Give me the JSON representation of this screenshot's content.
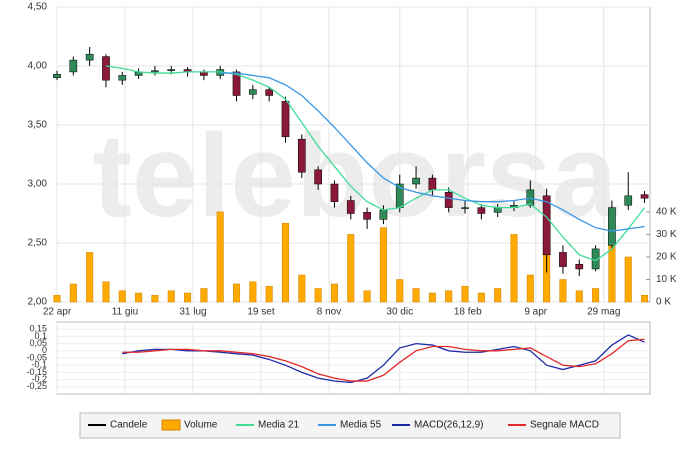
{
  "chart_data": {
    "type": "candlestick",
    "watermark": "teleborsa",
    "grid": true,
    "x": [
      0,
      12,
      24,
      36,
      48,
      60,
      72,
      84,
      96,
      108,
      120,
      132,
      144,
      156,
      168,
      180,
      192,
      204,
      216,
      228,
      240,
      252,
      264,
      276,
      288,
      300,
      312,
      324,
      336,
      348,
      360,
      372,
      384,
      396,
      408,
      420,
      432
    ],
    "xlim": [
      0,
      436
    ],
    "xticks": [
      {
        "value": 0,
        "label": "22 apr"
      },
      {
        "value": 50,
        "label": "11 giu"
      },
      {
        "value": 100,
        "label": "31 lug"
      },
      {
        "value": 150,
        "label": "19 set"
      },
      {
        "value": 200,
        "label": "8 nov"
      },
      {
        "value": 252,
        "label": "30 dic"
      },
      {
        "value": 302,
        "label": "18 feb"
      },
      {
        "value": 352,
        "label": "9 apr"
      },
      {
        "value": 402,
        "label": "29 mag"
      }
    ],
    "ylim": [
      2,
      4.5
    ],
    "yticks": [
      {
        "value": 2,
        "label": "2,00"
      },
      {
        "value": 2.5,
        "label": "2,50"
      },
      {
        "value": 3,
        "label": "3,00"
      },
      {
        "value": 3.5,
        "label": "3,50"
      },
      {
        "value": 4,
        "label": "4,00"
      },
      {
        "value": 4.5,
        "label": "4,50"
      }
    ],
    "y2lim": [
      0,
      131000
    ],
    "y2ticks": [
      {
        "value": 0,
        "label": "0 K"
      },
      {
        "value": 10000,
        "label": "10 K"
      },
      {
        "value": 20000,
        "label": "20 K"
      },
      {
        "value": 30000,
        "label": "30 K"
      },
      {
        "value": 40000,
        "label": "40 K"
      }
    ],
    "candles": {
      "name": "Candele",
      "color": "#000000",
      "up_color": "#2e8b57",
      "down_color": "#8b1a3a",
      "open": [
        3.9,
        3.95,
        4.05,
        4.08,
        3.88,
        3.92,
        3.95,
        3.96,
        3.97,
        3.95,
        3.92,
        3.95,
        3.76,
        3.8,
        3.7,
        3.38,
        3.12,
        3.0,
        2.86,
        2.76,
        2.7,
        2.8,
        3.0,
        3.05,
        2.93,
        2.8,
        2.8,
        2.76,
        2.8,
        2.82,
        2.9,
        2.42,
        2.32,
        2.28,
        2.48,
        2.82,
        2.91
      ],
      "high": [
        3.96,
        4.08,
        4.16,
        4.1,
        3.95,
        3.98,
        4.0,
        4.0,
        3.99,
        3.97,
        4.0,
        3.97,
        3.84,
        3.82,
        3.74,
        3.42,
        3.15,
        3.03,
        2.9,
        2.8,
        2.82,
        3.08,
        3.15,
        3.08,
        2.97,
        2.86,
        2.83,
        2.83,
        2.86,
        3.03,
        2.96,
        2.48,
        2.36,
        2.48,
        2.86,
        3.1,
        2.94
      ],
      "low": [
        3.88,
        3.92,
        4.0,
        3.82,
        3.84,
        3.89,
        3.92,
        3.93,
        3.91,
        3.88,
        3.89,
        3.7,
        3.72,
        3.7,
        3.35,
        3.05,
        2.95,
        2.8,
        2.7,
        2.62,
        2.66,
        2.76,
        2.96,
        2.9,
        2.76,
        2.75,
        2.7,
        2.72,
        2.77,
        2.8,
        2.25,
        2.24,
        2.22,
        2.26,
        2.44,
        2.78,
        2.84
      ],
      "close": [
        3.93,
        4.05,
        4.1,
        3.88,
        3.92,
        3.95,
        3.96,
        3.97,
        3.95,
        3.92,
        3.97,
        3.75,
        3.8,
        3.75,
        3.4,
        3.1,
        3.0,
        2.85,
        2.75,
        2.7,
        2.78,
        3.0,
        3.05,
        2.95,
        2.8,
        2.8,
        2.75,
        2.8,
        2.82,
        2.95,
        2.4,
        2.3,
        2.28,
        2.45,
        2.8,
        2.9,
        2.88
      ]
    },
    "series": [
      {
        "name": "Volume",
        "type": "bar",
        "axis": "y2",
        "color": "#ffaa00",
        "values": [
          3000,
          8000,
          22000,
          9000,
          5000,
          4000,
          3000,
          5000,
          4000,
          6000,
          40000,
          8000,
          9000,
          7000,
          35000,
          12000,
          6000,
          8000,
          30000,
          5000,
          33000,
          10000,
          6000,
          4000,
          5000,
          7000,
          4000,
          6000,
          30000,
          12000,
          35000,
          10000,
          5000,
          6000,
          40000,
          20000,
          3000
        ]
      },
      {
        "name": "Media 21",
        "type": "line",
        "color": "#3fdc96",
        "values": [
          null,
          null,
          null,
          4.0,
          3.98,
          3.95,
          3.94,
          3.94,
          3.95,
          3.95,
          3.95,
          3.93,
          3.88,
          3.82,
          3.72,
          3.52,
          3.32,
          3.15,
          2.98,
          2.85,
          2.78,
          2.8,
          2.88,
          2.95,
          2.95,
          2.88,
          2.82,
          2.8,
          2.8,
          2.83,
          2.72,
          2.55,
          2.4,
          2.35,
          2.45,
          2.62,
          2.8
        ]
      },
      {
        "name": "Media 55",
        "type": "line",
        "color": "#3a96e6",
        "values": [
          null,
          null,
          null,
          null,
          null,
          null,
          null,
          null,
          null,
          null,
          3.94,
          3.94,
          3.92,
          3.9,
          3.84,
          3.75,
          3.62,
          3.48,
          3.33,
          3.18,
          3.05,
          2.97,
          2.93,
          2.9,
          2.88,
          2.86,
          2.85,
          2.85,
          2.86,
          2.88,
          2.85,
          2.78,
          2.7,
          2.63,
          2.6,
          2.62,
          2.64
        ]
      }
    ],
    "macd": {
      "ylim": [
        -0.3,
        0.2
      ],
      "yticks": [
        {
          "value": 0.15,
          "label": "0,15"
        },
        {
          "value": 0.1,
          "label": "0,1"
        },
        {
          "value": 0.05,
          "label": "0,05"
        },
        0,
        {
          "value": -0.05,
          "label": "-0,05"
        },
        {
          "value": -0.1,
          "label": "-0,1"
        },
        {
          "value": -0.15,
          "label": "-0,15"
        },
        {
          "value": -0.2,
          "label": "-0,2"
        },
        {
          "value": -0.25,
          "label": "-0,25"
        }
      ],
      "series": [
        {
          "name": "MACD(26,12,9)",
          "color": "#1f2aa8",
          "values": [
            null,
            null,
            null,
            null,
            -0.02,
            0.0,
            0.01,
            0.01,
            0.0,
            0.0,
            -0.01,
            -0.02,
            -0.03,
            -0.06,
            -0.1,
            -0.15,
            -0.19,
            -0.21,
            -0.22,
            -0.19,
            -0.1,
            0.02,
            0.05,
            0.04,
            0.0,
            -0.01,
            -0.01,
            0.01,
            0.03,
            0.0,
            -0.1,
            -0.13,
            -0.1,
            -0.07,
            0.04,
            0.11,
            0.06
          ]
        },
        {
          "name": "Segnale MACD",
          "color": "#e02a2a",
          "values": [
            null,
            null,
            null,
            null,
            -0.01,
            -0.01,
            0.0,
            0.01,
            0.01,
            0.0,
            0.0,
            -0.01,
            -0.02,
            -0.04,
            -0.07,
            -0.11,
            -0.16,
            -0.19,
            -0.21,
            -0.21,
            -0.17,
            -0.08,
            0.0,
            0.03,
            0.03,
            0.01,
            0.0,
            0.0,
            0.01,
            0.02,
            -0.04,
            -0.1,
            -0.11,
            -0.09,
            -0.02,
            0.07,
            0.08
          ]
        }
      ]
    }
  }
}
